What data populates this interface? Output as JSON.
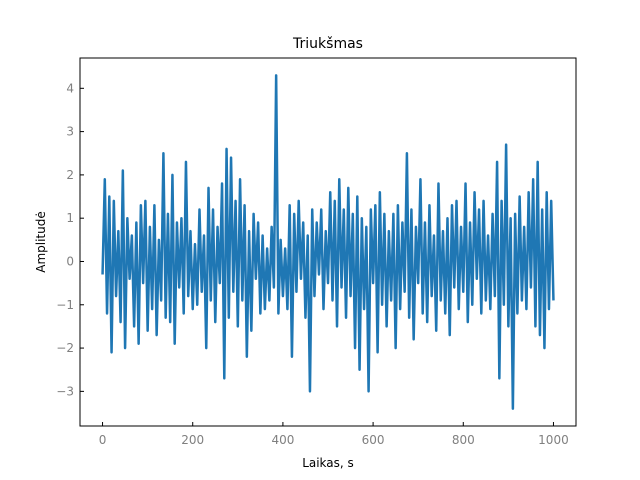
{
  "chart_data": {
    "type": "line",
    "title": "Triukšmas",
    "xlabel": "Laikas, s",
    "ylabel": "Amplitudė",
    "xlim": [
      -50,
      1050
    ],
    "ylim": [
      -3.8,
      4.7
    ],
    "x_ticks": [
      0,
      200,
      400,
      600,
      800,
      1000
    ],
    "y_ticks": [
      -3,
      -2,
      -1,
      0,
      1,
      2,
      3,
      4
    ],
    "grid": false,
    "series": [
      {
        "color": "#1f77b4",
        "x": [
          0,
          5,
          10,
          15,
          20,
          25,
          30,
          35,
          40,
          45,
          50,
          55,
          60,
          65,
          70,
          75,
          80,
          85,
          90,
          95,
          100,
          105,
          110,
          115,
          120,
          125,
          130,
          135,
          140,
          145,
          150,
          155,
          160,
          165,
          170,
          175,
          180,
          185,
          190,
          195,
          200,
          205,
          210,
          215,
          220,
          225,
          230,
          235,
          240,
          245,
          250,
          255,
          260,
          265,
          270,
          275,
          280,
          285,
          290,
          295,
          300,
          305,
          310,
          315,
          320,
          325,
          330,
          335,
          340,
          345,
          350,
          355,
          360,
          365,
          370,
          375,
          380,
          385,
          390,
          395,
          400,
          405,
          410,
          415,
          420,
          425,
          430,
          435,
          440,
          445,
          450,
          455,
          460,
          465,
          470,
          475,
          480,
          485,
          490,
          495,
          500,
          505,
          510,
          515,
          520,
          525,
          530,
          535,
          540,
          545,
          550,
          555,
          560,
          565,
          570,
          575,
          580,
          585,
          590,
          595,
          600,
          605,
          610,
          615,
          620,
          625,
          630,
          635,
          640,
          645,
          650,
          655,
          660,
          665,
          670,
          675,
          680,
          685,
          690,
          695,
          700,
          705,
          710,
          715,
          720,
          725,
          730,
          735,
          740,
          745,
          750,
          755,
          760,
          765,
          770,
          775,
          780,
          785,
          790,
          795,
          800,
          805,
          810,
          815,
          820,
          825,
          830,
          835,
          840,
          845,
          850,
          855,
          860,
          865,
          870,
          875,
          880,
          885,
          890,
          895,
          900,
          905,
          910,
          915,
          920,
          925,
          930,
          935,
          940,
          945,
          950,
          955,
          960,
          965,
          970,
          975,
          980,
          985,
          990,
          995,
          1000
        ],
        "y": [
          -0.3,
          1.9,
          -1.2,
          1.5,
          -2.1,
          1.4,
          -0.8,
          0.7,
          -1.4,
          2.1,
          -2.0,
          1.0,
          -0.4,
          0.6,
          -1.5,
          0.9,
          -1.9,
          1.3,
          -0.5,
          1.4,
          -1.6,
          0.8,
          -1.1,
          1.3,
          -1.7,
          0.5,
          -0.9,
          2.5,
          -1.3,
          1.1,
          -1.4,
          2.0,
          -1.9,
          0.9,
          -0.6,
          1.0,
          -1.2,
          2.3,
          -0.8,
          0.7,
          -1.1,
          0.4,
          -1.0,
          1.2,
          -0.7,
          0.6,
          -2.0,
          1.7,
          -0.9,
          1.2,
          -1.4,
          0.8,
          -0.5,
          1.8,
          -2.7,
          2.6,
          -1.3,
          2.4,
          -0.7,
          1.4,
          -1.5,
          1.9,
          -0.9,
          1.3,
          -2.2,
          0.7,
          -1.6,
          1.1,
          -0.4,
          0.9,
          -1.2,
          0.6,
          -1.1,
          0.3,
          -0.9,
          0.8,
          -0.6,
          4.3,
          -1.2,
          0.5,
          -0.8,
          0.3,
          -1.1,
          1.3,
          -2.2,
          1.1,
          -0.7,
          1.4,
          -0.4,
          0.9,
          -1.3,
          0.6,
          -3.0,
          1.2,
          -0.8,
          0.9,
          -0.3,
          1.2,
          -1.1,
          0.7,
          -0.5,
          1.6,
          -0.9,
          1.4,
          -1.5,
          1.9,
          -0.6,
          1.2,
          -1.3,
          1.7,
          -0.8,
          1.1,
          -2.0,
          1.5,
          -2.5,
          1.0,
          -1.1,
          0.8,
          -3.0,
          1.2,
          -0.5,
          1.3,
          -2.1,
          1.6,
          -1.0,
          1.1,
          -1.5,
          0.7,
          -0.9,
          1.1,
          -2.0,
          1.3,
          -1.1,
          0.9,
          -0.7,
          2.5,
          -1.3,
          1.2,
          -1.8,
          0.8,
          -0.5,
          1.9,
          -1.2,
          0.9,
          -1.4,
          1.3,
          -0.8,
          0.6,
          -1.6,
          1.8,
          -0.9,
          0.7,
          -1.2,
          1.0,
          -1.7,
          1.3,
          -0.6,
          1.4,
          -1.1,
          0.8,
          -0.7,
          1.8,
          -1.4,
          0.9,
          -1.0,
          1.6,
          -0.4,
          1.2,
          -1.2,
          1.4,
          -0.9,
          0.6,
          -1.1,
          1.1,
          -0.8,
          2.3,
          -2.7,
          1.4,
          -1.0,
          2.7,
          -1.5,
          1.0,
          -3.4,
          1.1,
          -1.2,
          1.5,
          -0.9,
          0.8,
          -1.1,
          1.6,
          -0.6,
          1.9,
          -1.5,
          2.3,
          -1.7,
          1.2,
          -2.0,
          1.6,
          -1.1,
          1.4,
          -0.9
        ]
      }
    ]
  }
}
